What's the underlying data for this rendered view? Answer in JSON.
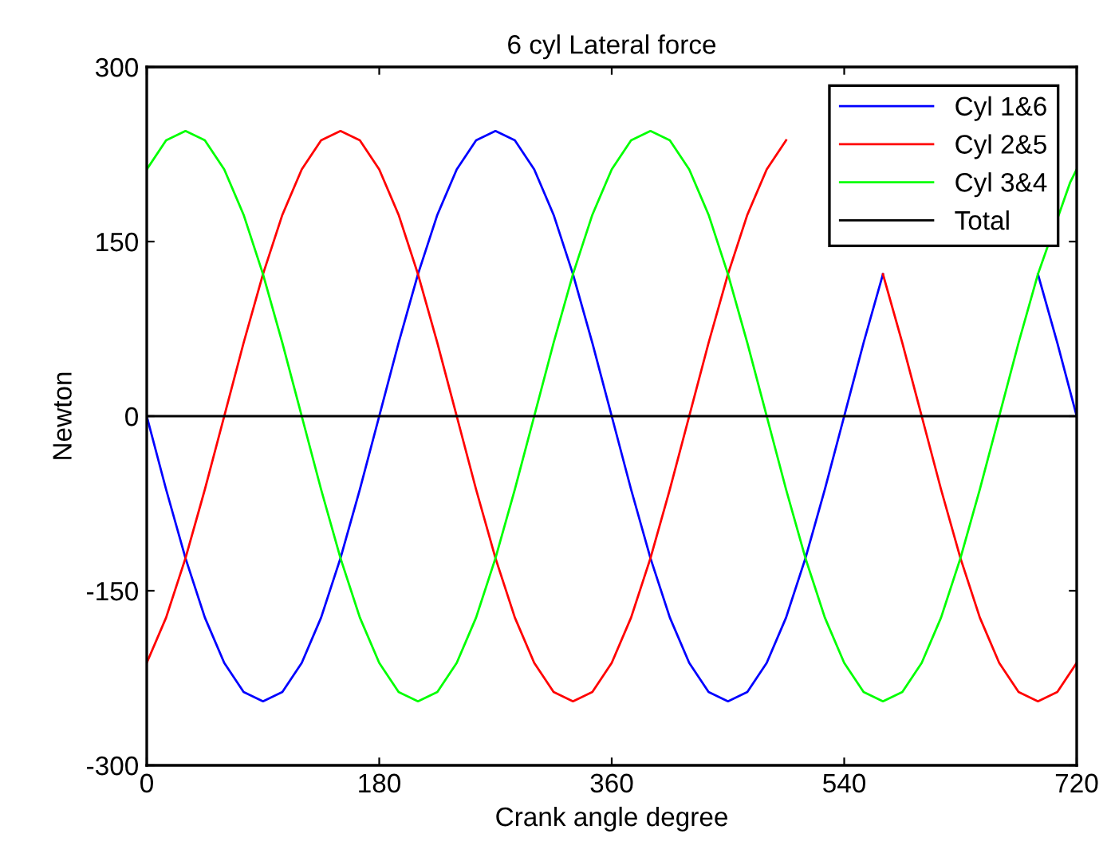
{
  "chart_data": {
    "type": "line",
    "title": "6 cyl Lateral force",
    "xlabel": "Crank angle degree",
    "ylabel": "Newton",
    "x": [
      0,
      15,
      30,
      45,
      60,
      75,
      90,
      105,
      120,
      135,
      150,
      165,
      180,
      195,
      210,
      225,
      240,
      255,
      270,
      285,
      300,
      315,
      330,
      345,
      360,
      375,
      390,
      405,
      420,
      435,
      450,
      465,
      480,
      495,
      510,
      525,
      540,
      555,
      570,
      585,
      600,
      615,
      630,
      645,
      660,
      675,
      690,
      705,
      720
    ],
    "series": [
      {
        "name": "Cyl 1&6",
        "color": "#0000ff",
        "values": [
          0,
          -63,
          -122,
          -173,
          -212,
          -237,
          -245,
          -237,
          -212,
          -173,
          -122,
          -63,
          0,
          63,
          122,
          173,
          212,
          237,
          245,
          237,
          212,
          173,
          122,
          63,
          0,
          -63,
          -122,
          -173,
          -212,
          -237,
          -245,
          -237,
          -212,
          -173,
          -122,
          -63,
          0,
          63,
          122,
          null,
          null,
          null,
          null,
          null,
          null,
          null,
          122,
          63,
          0
        ]
      },
      {
        "name": "Cyl 2&5",
        "color": "#ff0000",
        "values": [
          -212,
          -173,
          -122,
          -63,
          0,
          63,
          122,
          173,
          212,
          237,
          245,
          237,
          212,
          173,
          122,
          63,
          0,
          -63,
          -122,
          -173,
          -212,
          -237,
          -245,
          -237,
          -212,
          -173,
          -122,
          -63,
          0,
          63,
          122,
          173,
          212,
          237,
          null,
          null,
          null,
          null,
          122,
          63,
          0,
          -63,
          -122,
          -173,
          -212,
          -237,
          -245,
          -237,
          -212
        ]
      },
      {
        "name": "Cyl 3&4",
        "color": "#00ff00",
        "values": [
          212,
          237,
          245,
          237,
          212,
          173,
          122,
          63,
          0,
          -63,
          -122,
          -173,
          -212,
          -237,
          -245,
          -237,
          -212,
          -173,
          -122,
          -63,
          0,
          63,
          122,
          173,
          212,
          237,
          245,
          237,
          212,
          173,
          122,
          63,
          0,
          -63,
          -122,
          -173,
          -212,
          -237,
          -245,
          -237,
          -212,
          -173,
          -122,
          -63,
          0,
          63,
          122,
          201,
          212
        ],
        "x": [
          0,
          15,
          30,
          45,
          60,
          75,
          90,
          105,
          120,
          135,
          150,
          165,
          180,
          195,
          210,
          225,
          240,
          255,
          270,
          285,
          300,
          315,
          330,
          345,
          360,
          375,
          390,
          405,
          420,
          435,
          450,
          465,
          480,
          495,
          510,
          525,
          540,
          555,
          570,
          585,
          600,
          615,
          630,
          645,
          660,
          675,
          690,
          715,
          720
        ]
      },
      {
        "name": "Total",
        "color": "#000000",
        "values": [
          0,
          0,
          0,
          0,
          0,
          0,
          0,
          0,
          0,
          0,
          0,
          0,
          0,
          0,
          0,
          0,
          0,
          0,
          0,
          0,
          0,
          0,
          0,
          0,
          0,
          0,
          0,
          0,
          0,
          0,
          0,
          0,
          0,
          0,
          0,
          0,
          0,
          0,
          0,
          0,
          0,
          0,
          0,
          0,
          0,
          0,
          0,
          0,
          0
        ]
      }
    ],
    "xlim": [
      0,
      720
    ],
    "xticks": [
      0,
      180,
      360,
      540,
      720
    ],
    "ylim": [
      -300,
      300
    ],
    "yticks": [
      -300,
      -150,
      0,
      150,
      300
    ],
    "grid": false,
    "legend": "top right",
    "marker": "none",
    "line_style": "solid"
  }
}
